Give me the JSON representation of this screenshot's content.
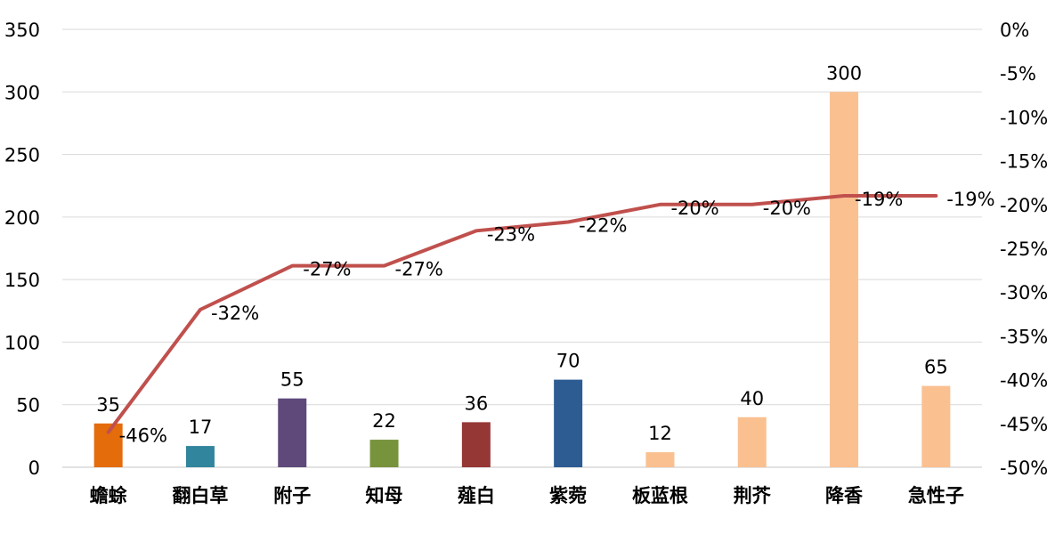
{
  "chart_data": {
    "type": "bar",
    "categories": [
      "蟾蜍",
      "翻白草",
      "附子",
      "知母",
      "薤白",
      "紫菀",
      "板蓝根",
      "荆芥",
      "降香",
      "急性子"
    ],
    "bar_values": [
      35,
      17,
      55,
      22,
      36,
      70,
      12,
      40,
      300,
      65
    ],
    "bar_labels": [
      "35",
      "17",
      "55",
      "22",
      "36",
      "70",
      "12",
      "40",
      "300",
      "65"
    ],
    "bar_colors": [
      "#E46C0A",
      "#31859C",
      "#5F497A",
      "#77933C",
      "#953735",
      "#2C5C92",
      "#FAC090",
      "#FAC090",
      "#FAC090",
      "#FAC090"
    ],
    "line_values": [
      -46,
      -32,
      -27,
      -27,
      -23,
      -22,
      -20,
      -20,
      -19,
      -19
    ],
    "line_labels": [
      "-46%",
      "-32%",
      "-27%",
      "-27%",
      "-23%",
      "-22%",
      "-20%",
      "-20%",
      "-19%",
      "-19%"
    ],
    "line_color": "#C0504D",
    "y_left_ticks": [
      "0",
      "50",
      "100",
      "150",
      "200",
      "250",
      "300",
      "350"
    ],
    "y_left_lim": [
      0,
      350
    ],
    "y_right_ticks": [
      "0%",
      "-5%",
      "-10%",
      "-15%",
      "-20%",
      "-25%",
      "-30%",
      "-35%",
      "-40%",
      "-45%",
      "-50%"
    ],
    "y_right_lim": [
      -50,
      0
    ],
    "grid": true,
    "title": "",
    "xlabel": "",
    "ylabel": ""
  }
}
